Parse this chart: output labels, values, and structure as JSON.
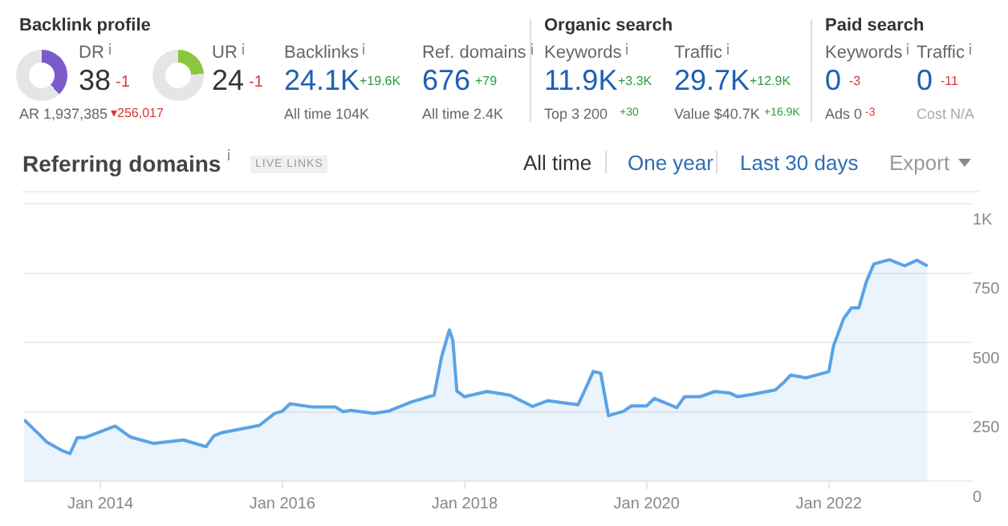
{
  "chart_data": [
    {
      "type": "other",
      "annotations": [
        "Backlink profile",
        "DR",
        "38",
        "-1",
        "AR 1,937,385",
        "▾256,017",
        "UR",
        "24",
        "-1",
        "Backlinks",
        "24.1K",
        "+19.6K",
        "All time 104K",
        "Ref. domains",
        "676",
        "+79",
        "All time 2.4K",
        "Organic search",
        "Keywords",
        "11.9K",
        "+3.3K",
        "Top 3 200",
        "+30",
        "Traffic",
        "29.7K",
        "+12.9K",
        "Value $40.7K",
        "+16.9K",
        "Paid search",
        "Keywords",
        "0",
        "-3",
        "Ads 0",
        "-3",
        "Traffic",
        "0",
        "-11",
        "Cost N/A"
      ]
    },
    {
      "type": "area",
      "title": "Referring domains",
      "annotations": [
        "LIVE LINKS",
        "All time",
        "One year",
        "Last 30 days",
        "Export"
      ],
      "x": [
        "2013-03",
        "2013-05",
        "2013-06",
        "2013-08",
        "2013-09",
        "2013-10",
        "2013-11",
        "2014-03",
        "2014-05",
        "2014-08",
        "2014-12",
        "2015-03",
        "2015-04",
        "2015-05",
        "2015-10",
        "2015-12",
        "2016-01",
        "2016-02",
        "2016-05",
        "2016-08",
        "2016-09",
        "2016-10",
        "2017-01",
        "2017-03",
        "2017-06",
        "2017-09",
        "2017-10",
        "2017-11",
        "2017-11-15",
        "2017-12",
        "2018-01",
        "2018-04",
        "2018-07",
        "2018-10",
        "2018-12",
        "2019-04",
        "2019-05",
        "2019-06",
        "2019-07",
        "2019-08",
        "2019-10",
        "2019-11",
        "2020-01",
        "2020-02",
        "2020-05",
        "2020-06",
        "2020-08",
        "2020-10",
        "2020-12",
        "2021-01",
        "2021-03",
        "2021-06",
        "2021-07",
        "2021-08",
        "2021-10",
        "2021-12",
        "2022-01",
        "2022-01-20",
        "2022-03",
        "2022-04",
        "2022-05",
        "2022-06",
        "2022-07",
        "2022-09",
        "2022-11",
        "2022-12-20",
        "2023-02"
      ],
      "series": [
        {
          "color": "#5ba3e6",
          "values": [
            221,
            168,
            140,
            110,
            99,
            157,
            157,
            198,
            159,
            136,
            148,
            124,
            163,
            174,
            201,
            244,
            252,
            279,
            267,
            267,
            250,
            255,
            244,
            252,
            285,
            310,
            449,
            545,
            506,
            325,
            304,
            323,
            310,
            269,
            290,
            275,
            333,
            395,
            389,
            236,
            252,
            271,
            271,
            298,
            265,
            304,
            304,
            323,
            317,
            304,
            313,
            329,
            353,
            382,
            372,
            387,
            395,
            488,
            585,
            624,
            624,
            720,
            783,
            798,
            776,
            796,
            775
          ]
        }
      ],
      "xlim": [
        "2013-03",
        "2023-08"
      ],
      "xticks": [
        {
          "value": "2014-01",
          "label": "Jan 2014"
        },
        {
          "value": "2016-01",
          "label": "Jan 2016"
        },
        {
          "value": "2018-01",
          "label": "Jan 2018"
        },
        {
          "value": "2020-01",
          "label": "Jan 2020"
        },
        {
          "value": "2022-01",
          "label": "Jan 2022"
        }
      ],
      "ylim": [
        0,
        1000
      ],
      "yticks": [
        0,
        250,
        500,
        750,
        {
          "value": 1000,
          "label": "1K"
        }
      ],
      "grid": "y"
    }
  ]
}
